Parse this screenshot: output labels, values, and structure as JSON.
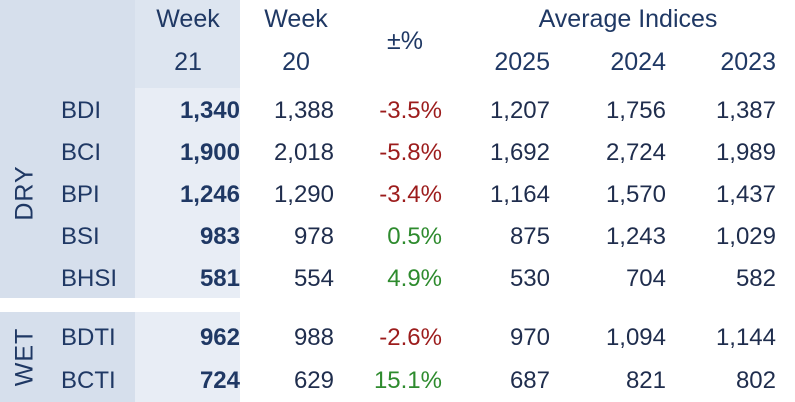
{
  "header": {
    "current_week_top": "Week",
    "current_week_bottom": "21",
    "prev_week_top": "Week",
    "prev_week_bottom": "20",
    "change_label": "±%",
    "averages_label": "Average Indices",
    "year_1": "2025",
    "year_2": "2024",
    "year_3": "2023"
  },
  "dry": {
    "label": "DRY",
    "rows": [
      {
        "name": "BDI",
        "cur": "1,340",
        "prev": "1,388",
        "chg": "-3.5%",
        "chg_dir": "neg",
        "y2025": "1,207",
        "y2024": "1,756",
        "y2023": "1,387"
      },
      {
        "name": "BCI",
        "cur": "1,900",
        "prev": "2,018",
        "chg": "-5.8%",
        "chg_dir": "neg",
        "y2025": "1,692",
        "y2024": "2,724",
        "y2023": "1,989"
      },
      {
        "name": "BPI",
        "cur": "1,246",
        "prev": "1,290",
        "chg": "-3.4%",
        "chg_dir": "neg",
        "y2025": "1,164",
        "y2024": "1,570",
        "y2023": "1,437"
      },
      {
        "name": "BSI",
        "cur": "983",
        "prev": "978",
        "chg": "0.5%",
        "chg_dir": "pos",
        "y2025": "875",
        "y2024": "1,243",
        "y2023": "1,029"
      },
      {
        "name": "BHSI",
        "cur": "581",
        "prev": "554",
        "chg": "4.9%",
        "chg_dir": "pos",
        "y2025": "530",
        "y2024": "704",
        "y2023": "582"
      }
    ]
  },
  "wet": {
    "label": "WET",
    "rows": [
      {
        "name": "BDTI",
        "cur": "962",
        "prev": "988",
        "chg": "-2.6%",
        "chg_dir": "neg",
        "y2025": "970",
        "y2024": "1,094",
        "y2023": "1,144"
      },
      {
        "name": "BCTI",
        "cur": "724",
        "prev": "629",
        "chg": "15.1%",
        "chg_dir": "pos",
        "y2025": "687",
        "y2024": "821",
        "y2023": "802"
      }
    ]
  },
  "colors": {
    "text": "#1f3864",
    "negative": "#9c1c1c",
    "positive": "#2e8b2e",
    "side_fill": "#d6dfec",
    "current_week_fill": "#e8edf5"
  }
}
